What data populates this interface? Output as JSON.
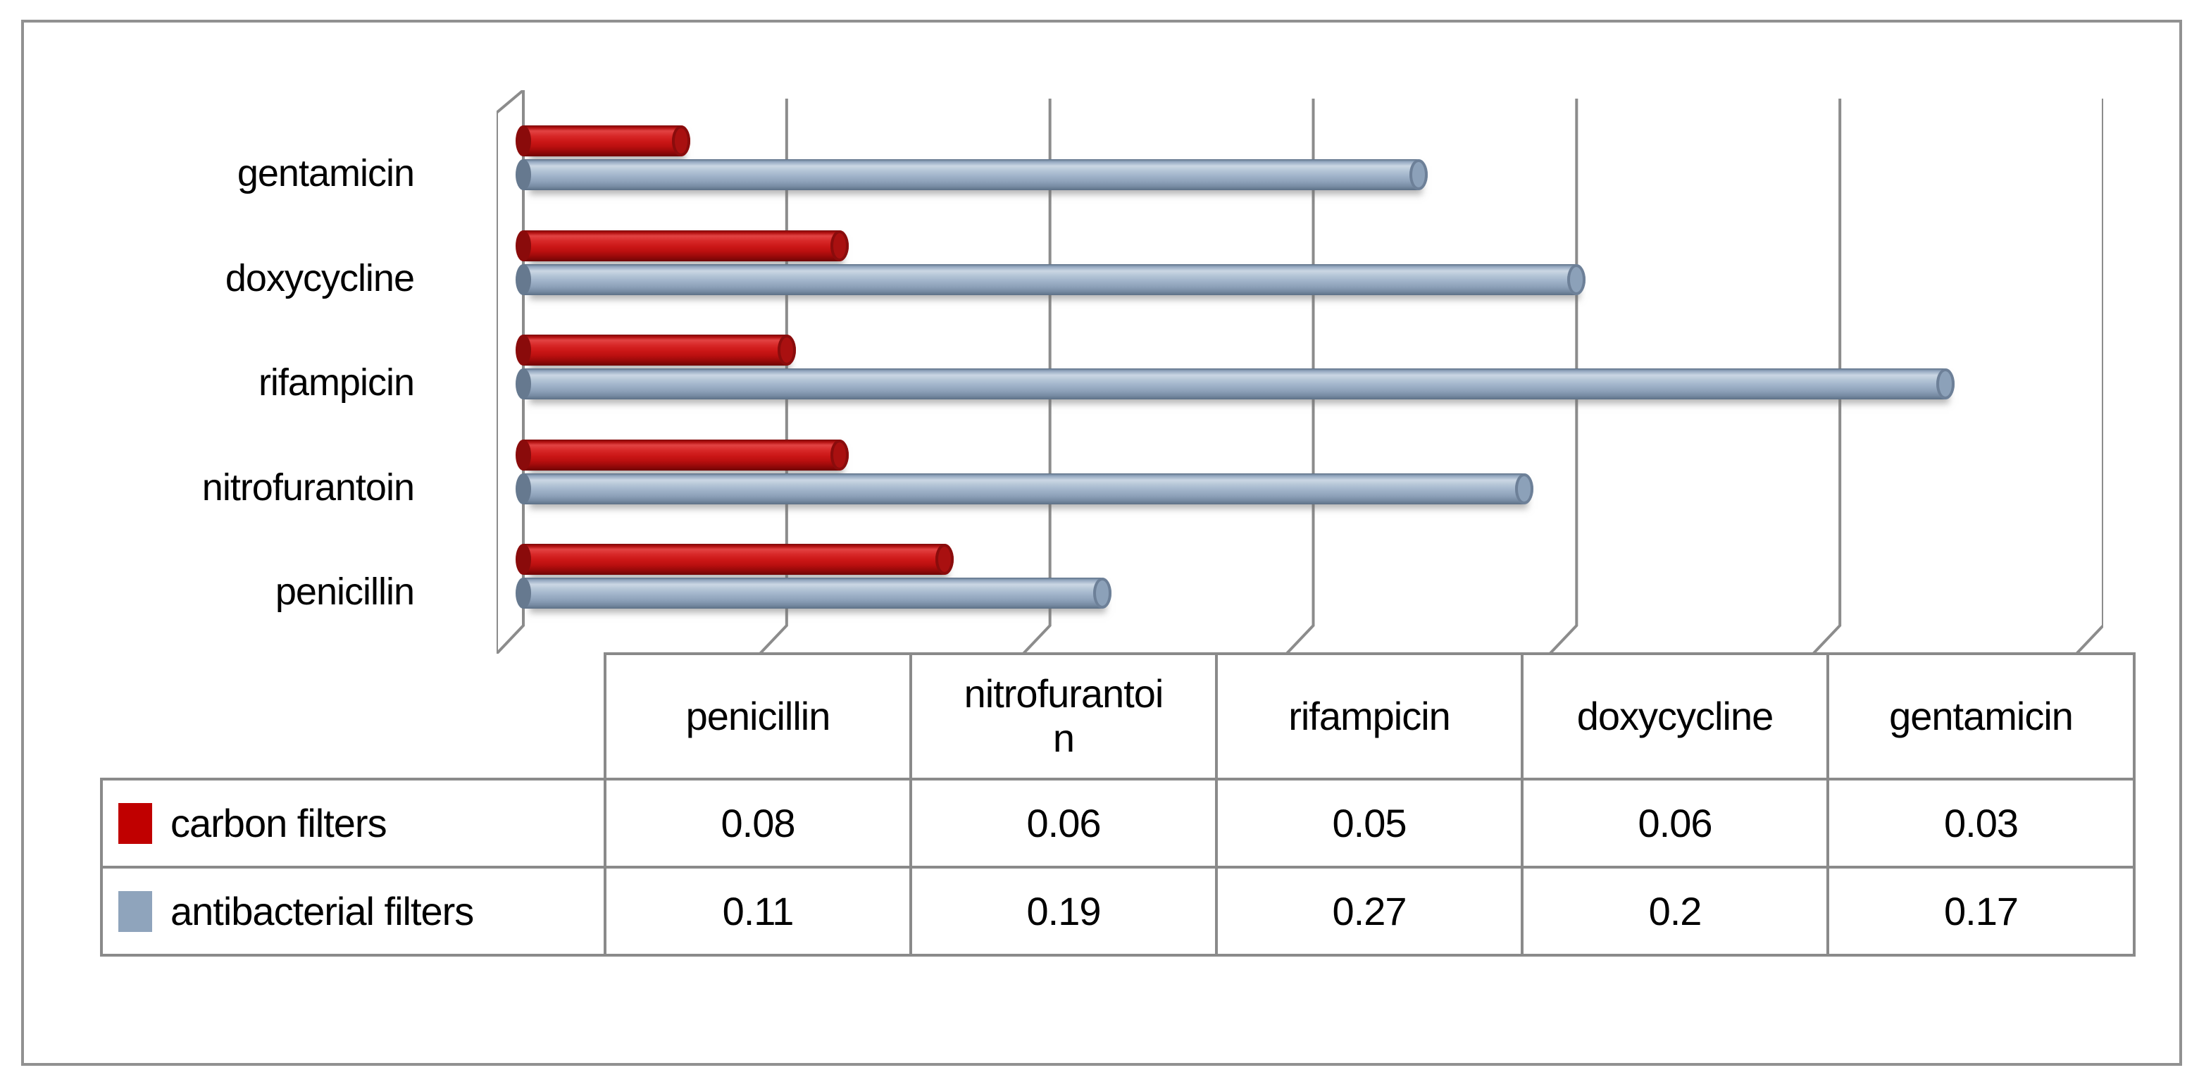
{
  "figure": {
    "background": "#ffffff",
    "frame_border_color": "#919191",
    "plot_line_color": "#8c8c8c"
  },
  "chart_data": {
    "type": "bar",
    "orientation": "horizontal",
    "style": "3d-cylinder",
    "title": "",
    "xlabel": "",
    "ylabel": "",
    "categories": [
      "penicillin",
      "nitrofurantoin",
      "rifampicin",
      "doxycycline",
      "gentamicin"
    ],
    "category_axis_order_top_to_bottom": [
      "gentamicin",
      "doxycycline",
      "rifampicin",
      "nitrofurantoin",
      "penicillin"
    ],
    "series": [
      {
        "name": "carbon filters",
        "color": "#c00000",
        "values": [
          0.08,
          0.06,
          0.05,
          0.06,
          0.03
        ]
      },
      {
        "name": "antibacterial filters",
        "color": "#8fa4bc",
        "values": [
          0.11,
          0.19,
          0.27,
          0.2,
          0.17
        ]
      }
    ],
    "xlim": [
      0,
      0.3
    ],
    "x_gridline_step": 0.05,
    "x_tick_labels_visible": false,
    "grid": true,
    "legend_position": "table-left"
  },
  "table": {
    "column_headers": [
      "penicillin",
      "nitrofurantoi\nn",
      "rifampicin",
      "doxycycline",
      "gentamicin"
    ],
    "rows": [
      {
        "label": "carbon filters",
        "swatch_color": "#c00000",
        "values": [
          "0.08",
          "0.06",
          "0.05",
          "0.06",
          "0.03"
        ]
      },
      {
        "label": "antibacterial filters",
        "swatch_color": "#8fa4bc",
        "values": [
          "0.11",
          "0.19",
          "0.27",
          "0.2",
          "0.17"
        ]
      }
    ]
  }
}
